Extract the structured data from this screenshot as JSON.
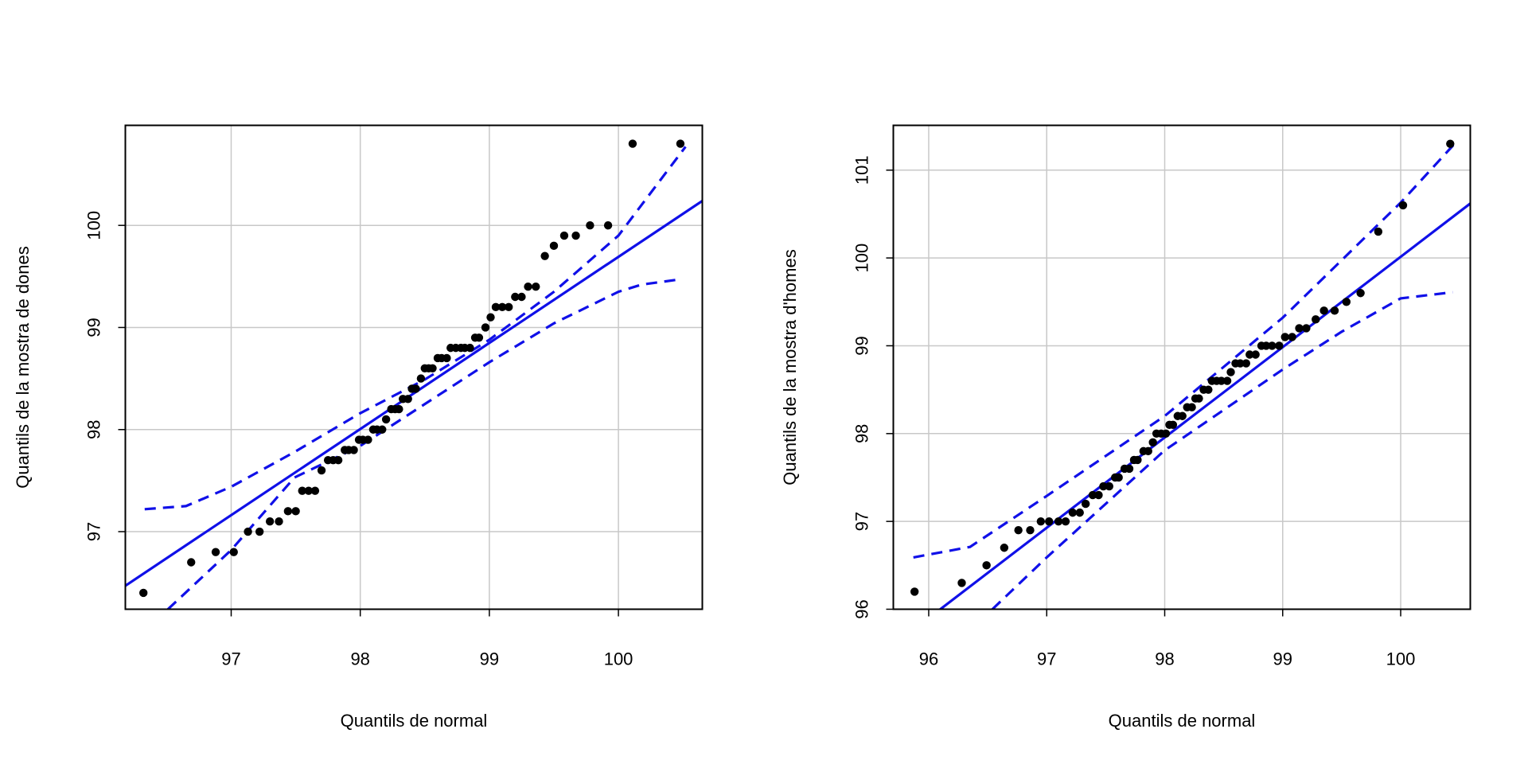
{
  "chart_data": [
    {
      "type": "scatter",
      "x_label": "Quantils de normal",
      "y_label": "Quantils de la mostra de dones",
      "xlim": [
        96.18,
        100.65
      ],
      "ylim": [
        96.24,
        100.98
      ],
      "xticks": [
        97,
        98,
        99,
        100
      ],
      "yticks": [
        97,
        98,
        99,
        100
      ],
      "grid": true,
      "point_color": "#000000",
      "line_color": "#1010e8",
      "x": [
        96.32,
        96.69,
        96.88,
        97.02,
        97.13,
        97.22,
        97.3,
        97.37,
        97.44,
        97.5,
        97.55,
        97.6,
        97.65,
        97.7,
        97.75,
        97.79,
        97.83,
        97.88,
        97.91,
        97.95,
        97.99,
        98.02,
        98.06,
        98.1,
        98.13,
        98.17,
        98.2,
        98.24,
        98.27,
        98.3,
        98.33,
        98.37,
        98.4,
        98.43,
        98.47,
        98.5,
        98.53,
        98.56,
        98.6,
        98.63,
        98.67,
        98.7,
        98.74,
        98.78,
        98.81,
        98.85,
        98.89,
        98.92,
        98.97,
        99.01,
        99.05,
        99.1,
        99.15,
        99.2,
        99.25,
        99.3,
        99.36,
        99.43,
        99.5,
        99.58,
        99.67,
        99.78,
        99.92,
        100.11,
        100.48
      ],
      "y": [
        96.4,
        96.7,
        96.8,
        96.8,
        97.0,
        97.0,
        97.1,
        97.1,
        97.2,
        97.2,
        97.4,
        97.4,
        97.4,
        97.6,
        97.7,
        97.7,
        97.7,
        97.8,
        97.8,
        97.8,
        97.9,
        97.9,
        97.9,
        98.0,
        98.0,
        98.0,
        98.1,
        98.2,
        98.2,
        98.2,
        98.3,
        98.3,
        98.4,
        98.4,
        98.5,
        98.6,
        98.6,
        98.6,
        98.7,
        98.7,
        98.7,
        98.8,
        98.8,
        98.8,
        98.8,
        98.8,
        98.9,
        98.9,
        99.0,
        99.1,
        99.2,
        99.2,
        99.2,
        99.3,
        99.3,
        99.4,
        99.4,
        99.7,
        99.8,
        99.9,
        99.9,
        100.0,
        100.0,
        100.8,
        100.8
      ],
      "reference_line": {
        "x": [
          96.18,
          100.65
        ],
        "y": [
          96.47,
          100.24
        ]
      },
      "confidence_band_upper": {
        "x": [
          96.33,
          96.65,
          97.0,
          97.49,
          98.0,
          98.5,
          99.0,
          99.5,
          100.0,
          100.52
        ],
        "y": [
          97.22,
          97.25,
          97.44,
          97.78,
          98.16,
          98.49,
          98.88,
          99.35,
          99.9,
          100.77
        ]
      },
      "confidence_band_lower": {
        "x": [
          96.51,
          97.0,
          97.49,
          98.0,
          99.0,
          99.5,
          100.0,
          100.18,
          100.47
        ],
        "y": [
          96.24,
          96.82,
          97.53,
          97.84,
          98.66,
          99.04,
          99.35,
          99.42,
          99.47
        ]
      }
    },
    {
      "type": "scatter",
      "x_label": "Quantils de normal",
      "y_label": "Quantils de la mostra d'homes",
      "xlim": [
        95.7,
        100.59
      ],
      "ylim": [
        96.0,
        101.51
      ],
      "xticks": [
        96,
        97,
        98,
        99,
        100
      ],
      "yticks": [
        96,
        97,
        98,
        99,
        100,
        101
      ],
      "grid": true,
      "point_color": "#000000",
      "line_color": "#1010e8",
      "x": [
        95.88,
        96.28,
        96.49,
        96.64,
        96.76,
        96.86,
        96.95,
        97.02,
        97.1,
        97.16,
        97.22,
        97.28,
        97.33,
        97.39,
        97.44,
        97.48,
        97.53,
        97.58,
        97.61,
        97.66,
        97.7,
        97.74,
        97.77,
        97.82,
        97.86,
        97.9,
        97.93,
        97.97,
        98.01,
        98.04,
        98.07,
        98.11,
        98.15,
        98.19,
        98.23,
        98.26,
        98.29,
        98.33,
        98.37,
        98.4,
        98.44,
        98.48,
        98.53,
        98.56,
        98.6,
        98.64,
        98.69,
        98.72,
        98.77,
        98.82,
        98.86,
        98.91,
        98.97,
        99.02,
        99.08,
        99.14,
        99.2,
        99.28,
        99.35,
        99.44,
        99.54,
        99.66,
        99.81,
        100.02,
        100.42
      ],
      "y": [
        96.2,
        96.3,
        96.5,
        96.7,
        96.9,
        96.9,
        97.0,
        97.0,
        97.0,
        97.0,
        97.1,
        97.1,
        97.2,
        97.3,
        97.3,
        97.4,
        97.4,
        97.5,
        97.5,
        97.6,
        97.6,
        97.7,
        97.7,
        97.8,
        97.8,
        97.9,
        98.0,
        98.0,
        98.0,
        98.1,
        98.1,
        98.2,
        98.2,
        98.3,
        98.3,
        98.4,
        98.4,
        98.5,
        98.5,
        98.6,
        98.6,
        98.6,
        98.6,
        98.7,
        98.8,
        98.8,
        98.8,
        98.9,
        98.9,
        99.0,
        99.0,
        99.0,
        99.0,
        99.1,
        99.1,
        99.2,
        99.2,
        99.3,
        99.4,
        99.4,
        99.5,
        99.6,
        100.3,
        100.6,
        101.3
      ],
      "reference_line": {
        "x": [
          95.7,
          100.59
        ],
        "y": [
          95.59,
          100.62
        ]
      },
      "confidence_band_upper": {
        "x": [
          95.87,
          96.35,
          97.0,
          98.0,
          99.0,
          100.0,
          100.45
        ],
        "y": [
          96.59,
          96.71,
          97.29,
          98.2,
          99.32,
          100.63,
          101.29
        ]
      },
      "confidence_band_lower": {
        "x": [
          96.54,
          97.0,
          98.0,
          99.0,
          99.5,
          100.0,
          100.44
        ],
        "y": [
          96.0,
          96.59,
          97.81,
          98.73,
          99.16,
          99.54,
          99.61
        ]
      }
    }
  ]
}
